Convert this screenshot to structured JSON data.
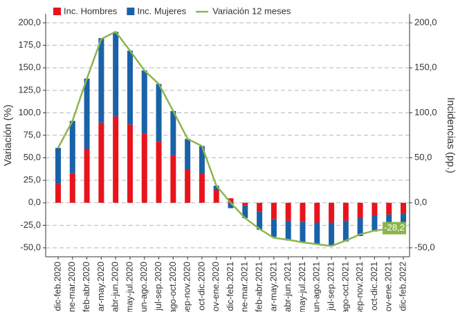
{
  "chart_data": {
    "type": "combo",
    "categories": [
      "dic-feb.2020",
      "ene-mar.2020",
      "feb-abr.2020",
      "mar-may.2020",
      "abr-jun.2020",
      "may-jul.2020",
      "jun-ago.2020",
      "jul-sep.2020",
      "ago-oct.2020",
      "sep-nov.2020",
      "oct-dic.2020",
      "nov-ene.2020",
      "dic-feb.2021",
      "ene-mar.2021",
      "feb-abr.2021",
      "mar-may.2021",
      "abr-jun.2021",
      "may-jul.2021",
      "jun-ago.2021",
      "jul-sep.2021",
      "ago-oct.2021",
      "sep-nov.2021",
      "oct-dic.2021",
      "nov-ene.2021",
      "dic-feb.2022"
    ],
    "series": [
      {
        "name": "Inc. Hombres",
        "type": "bar",
        "axis": "y2",
        "color": "#e8141c",
        "values": [
          21,
          33,
          60,
          89,
          96,
          87,
          77,
          68,
          53,
          37,
          32,
          14,
          5,
          -3,
          -10,
          -18,
          -20,
          -21,
          -22,
          -22,
          -20,
          -17,
          -14,
          -13,
          -12
        ]
      },
      {
        "name": "Inc. Mujeres",
        "type": "bar",
        "axis": "y2",
        "color": "#1a62a8",
        "values": [
          40,
          58,
          78,
          94,
          94,
          82,
          70,
          64,
          49,
          34,
          31,
          5,
          -6,
          -14,
          -20,
          -20,
          -22,
          -23,
          -24,
          -25,
          -23,
          -20,
          -18,
          -15,
          -16
        ]
      },
      {
        "name": "Variación 12 meses",
        "type": "line",
        "color": "#8db44b",
        "values": [
          61,
          91,
          138,
          182,
          190,
          169,
          147,
          132,
          102,
          71,
          63,
          19,
          0,
          -17,
          -29,
          -39,
          -41,
          -44,
          -46,
          -48,
          -42,
          -35,
          -31,
          -29,
          -28.2
        ],
        "value_labels": [
          null,
          null,
          null,
          null,
          null,
          null,
          null,
          null,
          null,
          null,
          null,
          null,
          null,
          null,
          null,
          null,
          null,
          null,
          null,
          null,
          null,
          null,
          null,
          null,
          "-28,2"
        ]
      }
    ],
    "y_label": "Variación (%)",
    "y2_label": "Incidencias (pp.)",
    "ylim": [
      -60,
      210
    ],
    "y2lim": [
      -60,
      210
    ],
    "yticks": [
      {
        "value": -50,
        "label": "-50,0"
      },
      {
        "value": -25,
        "label": "-25,0"
      },
      {
        "value": 0,
        "label": "0,0"
      },
      {
        "value": 25,
        "label": "25,0"
      },
      {
        "value": 50,
        "label": "50,0"
      },
      {
        "value": 75,
        "label": "75,0"
      },
      {
        "value": 100,
        "label": "100,0"
      },
      {
        "value": 125,
        "label": "125,0"
      },
      {
        "value": 150,
        "label": "150,0"
      },
      {
        "value": 175,
        "label": "175,0"
      },
      {
        "value": 200,
        "label": "200,0"
      }
    ],
    "y2ticks": [
      {
        "value": -50,
        "label": "-50,0"
      },
      {
        "value": 0,
        "label": "0,0"
      },
      {
        "value": 50,
        "label": "50,0"
      },
      {
        "value": 100,
        "label": "100,0"
      },
      {
        "value": 150,
        "label": "150,0"
      },
      {
        "value": 200,
        "label": "200,0"
      }
    ],
    "grid": true,
    "legend": "top"
  }
}
